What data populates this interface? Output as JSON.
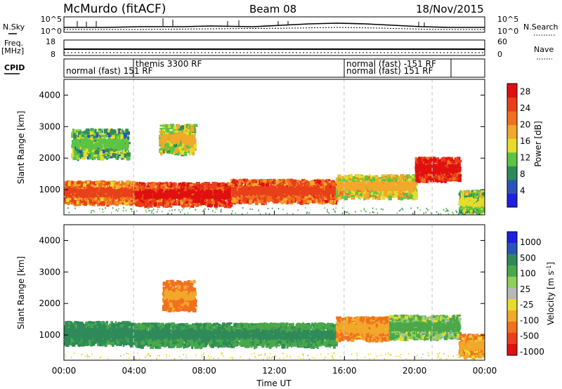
{
  "header": {
    "station": "McMurdo (fitACF)",
    "beam": "Beam 08",
    "date": "18/Nov/2015"
  },
  "side_labels": {
    "nsky": "N.Sky",
    "freq_line1": "Freq.",
    "freq_line2": "[MHz]",
    "cpid": "CPID",
    "nsearch": "N.Search",
    "nave": "Nave"
  },
  "noise_panel": {
    "left_ticks": [
      "10^5",
      "10^0"
    ],
    "right_ticks": [
      "10^5",
      "10^0"
    ]
  },
  "freq_panel": {
    "left_ticks": [
      "18",
      "8"
    ],
    "right_ticks": [
      "60",
      "0"
    ]
  },
  "cpid_labels": [
    "normal (fast)  151  RF",
    "themis 3300 RF",
    "normal (fast)  -151 RF",
    "normal (fast)  151  RF"
  ],
  "colors": {
    "power_scale": [
      "#1f1fe0",
      "#2a55b8",
      "#2f8a5a",
      "#5cc444",
      "#e6dc2a",
      "#f2a82a",
      "#f07020",
      "#e8401a",
      "#e01010"
    ],
    "velocity_scale": [
      "#1f1fe0",
      "#2a55b8",
      "#2f8a5a",
      "#4aa84a",
      "#8ed05a",
      "#b8b8b8",
      "#e6dc2a",
      "#f2a82a",
      "#f07020",
      "#e8401a",
      "#e01010"
    ],
    "gate_dash": "#c8c8c8"
  },
  "chart_data": [
    {
      "type": "heatmap",
      "title": "",
      "xlabel": "",
      "ylabel": "Slant Range [km]",
      "x_range_hours": [
        0,
        24
      ],
      "ylim": [
        200,
        4500
      ],
      "y_ticks": [
        "1000",
        "2000",
        "3000",
        "4000"
      ],
      "colorbar": {
        "label": "Power [dB]",
        "ticks": [
          "4",
          "8",
          "12",
          "16",
          "20",
          "24",
          "28"
        ],
        "range": [
          0,
          30
        ]
      },
      "series": [
        {
          "x_start_h": 0.0,
          "x_end_h": 4.0,
          "range_km": 950,
          "value_db": 22
        },
        {
          "x_start_h": 0.4,
          "x_end_h": 3.6,
          "range_km": 2500,
          "value_db": 10
        },
        {
          "x_start_h": 4.0,
          "x_end_h": 9.5,
          "range_km": 900,
          "value_db": 26
        },
        {
          "x_start_h": 5.4,
          "x_end_h": 7.4,
          "range_km": 2650,
          "value_db": 14
        },
        {
          "x_start_h": 9.5,
          "x_end_h": 15.5,
          "range_km": 1000,
          "value_db": 24
        },
        {
          "x_start_h": 15.5,
          "x_end_h": 20.0,
          "range_km": 1150,
          "value_db": 16
        },
        {
          "x_start_h": 20.0,
          "x_end_h": 22.5,
          "range_km": 1700,
          "value_db": 28
        },
        {
          "x_start_h": 22.5,
          "x_end_h": 24.0,
          "range_km": 650,
          "value_db": 12
        }
      ]
    },
    {
      "type": "heatmap",
      "title": "",
      "xlabel": "Time UT",
      "ylabel": "Slant Range [km]",
      "x_range_hours": [
        0,
        24
      ],
      "x_ticks": [
        "00:00",
        "04:00",
        "08:00",
        "12:00",
        "16:00",
        "20:00",
        "00:00"
      ],
      "ylim": [
        200,
        4500
      ],
      "y_ticks": [
        "1000",
        "2000",
        "3000",
        "4000"
      ],
      "colorbar": {
        "label": "Velocity [m s^-1]",
        "ticks": [
          "1000",
          "500",
          "100",
          "25",
          "-25",
          "-100",
          "-500",
          "-1000"
        ]
      },
      "series": [
        {
          "x_start_h": 0.0,
          "x_end_h": 4.0,
          "range_km": 1100,
          "value_ms": 300
        },
        {
          "x_start_h": 4.0,
          "x_end_h": 9.5,
          "range_km": 1050,
          "value_ms": 250
        },
        {
          "x_start_h": 5.6,
          "x_end_h": 7.4,
          "range_km": 2300,
          "value_ms": -150
        },
        {
          "x_start_h": 9.5,
          "x_end_h": 15.5,
          "range_km": 1050,
          "value_ms": 200
        },
        {
          "x_start_h": 15.5,
          "x_end_h": 18.5,
          "range_km": 1250,
          "value_ms": -120
        },
        {
          "x_start_h": 18.5,
          "x_end_h": 22.5,
          "range_km": 1300,
          "value_ms": 80
        },
        {
          "x_start_h": 22.5,
          "x_end_h": 24.0,
          "range_km": 700,
          "value_ms": -80
        }
      ]
    }
  ]
}
